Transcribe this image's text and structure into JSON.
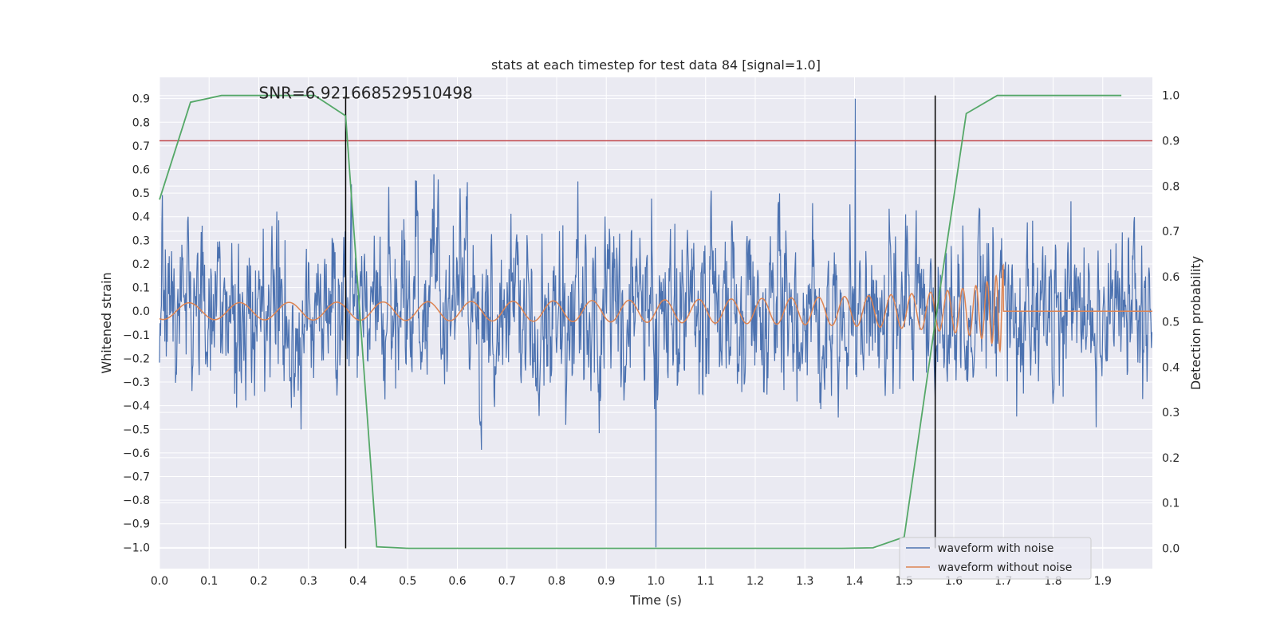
{
  "chart_data": {
    "type": "line",
    "title": "stats at each timestep for test data 84 [signal=1.0]",
    "xlabel": "Time (s)",
    "ylabel": "Whitened strain",
    "y2label": "Detection probability",
    "xlim": [
      0.0,
      2.0
    ],
    "ylim": [
      -1.09,
      0.99
    ],
    "y2lim": [
      -0.045,
      1.04
    ],
    "x_ticks": [
      "0.0",
      "0.1",
      "0.2",
      "0.3",
      "0.4",
      "0.5",
      "0.6",
      "0.7",
      "0.8",
      "0.9",
      "1.0",
      "1.1",
      "1.2",
      "1.3",
      "1.4",
      "1.5",
      "1.6",
      "1.7",
      "1.8",
      "1.9"
    ],
    "y_ticks": [
      "0.9",
      "0.8",
      "0.7",
      "0.6",
      "0.5",
      "0.4",
      "0.3",
      "0.2",
      "0.1",
      "0.0",
      "−0.1",
      "−0.2",
      "−0.3",
      "−0.4",
      "−0.5",
      "−0.6",
      "−0.7",
      "−0.8",
      "−0.9",
      "−1.0"
    ],
    "y2_ticks": [
      "1.0",
      "0.9",
      "0.8",
      "0.7",
      "0.6",
      "0.5",
      "0.4",
      "0.3",
      "0.2",
      "0.1",
      "0.0"
    ],
    "grid": true,
    "legend_position": "lower-right",
    "annotation": "SNR=6.921668529510498",
    "threshold_y2": 0.9,
    "vlines_x": [
      0.375,
      1.5625
    ],
    "series": [
      {
        "name": "waveform with noise",
        "color": "#4c72b0",
        "axis": "left",
        "noise_amplitude": 0.9,
        "peak_max": 0.9,
        "peak_min": -1.0
      },
      {
        "name": "waveform without noise",
        "color": "#dd8452",
        "axis": "left",
        "chirp_start_amplitude": 0.035,
        "chirp_peak_amplitude": 0.22,
        "merger_time": 1.7
      },
      {
        "name": "",
        "color": "#55a868",
        "axis": "right",
        "x": [
          0.0,
          0.0625,
          0.125,
          0.1875,
          0.25,
          0.3125,
          0.375,
          0.4375,
          0.5,
          0.5625,
          0.625,
          0.6875,
          0.75,
          0.8125,
          0.875,
          0.9375,
          1.0,
          1.0625,
          1.125,
          1.1875,
          1.25,
          1.3125,
          1.375,
          1.4375,
          1.5,
          1.5625,
          1.625,
          1.6875,
          1.75,
          1.8125,
          1.875,
          1.9375
        ],
        "values": [
          0.77,
          0.985,
          1.0,
          1.0,
          1.0,
          1.0,
          0.955,
          0.003,
          0.0,
          0.0,
          0.0,
          0.0,
          0.0,
          0.0,
          0.0,
          0.0,
          0.0,
          0.0,
          0.0,
          0.0,
          0.0,
          0.0,
          0.0,
          0.001,
          0.025,
          0.5,
          0.96,
          1.0,
          1.0,
          1.0,
          1.0,
          1.0
        ]
      }
    ],
    "colors": {
      "background": "#eaeaf2",
      "grid": "#ffffff",
      "threshold": "#c44e52",
      "vline": "#000000"
    }
  }
}
